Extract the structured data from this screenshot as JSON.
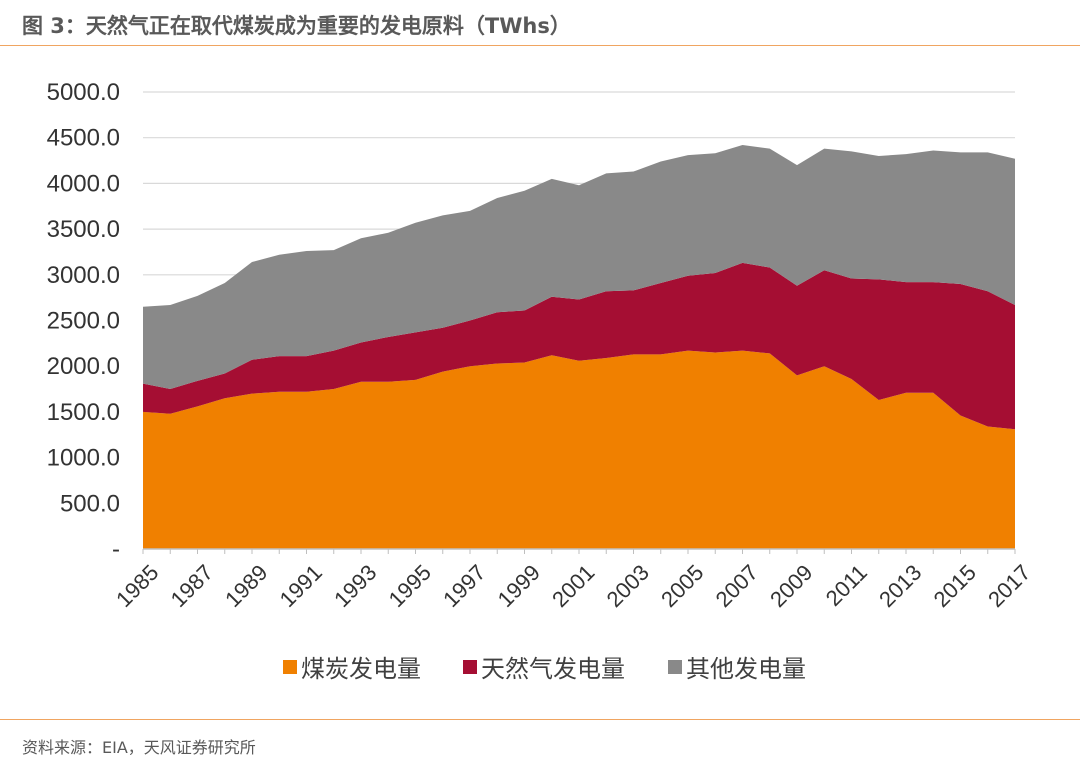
{
  "header": {
    "title": "图 3：天然气正在取代煤炭成为重要的发电原料（TWhs）"
  },
  "footer": {
    "source": "资料来源：EIA，天风证券研究所"
  },
  "colors": {
    "coal": "#f08000",
    "gas": "#a50e33",
    "other": "#898989",
    "grid": "#d9d9d9",
    "rule": "#f0a561"
  },
  "chart_data": {
    "type": "area",
    "stacked": true,
    "title": "",
    "xlabel": "",
    "ylabel": "",
    "ylim": [
      0,
      5000
    ],
    "yticks": [
      0,
      500,
      1000,
      1500,
      2000,
      2500,
      3000,
      3500,
      4000,
      4500,
      5000
    ],
    "ytick_labels": [
      "-",
      "500.0",
      "1000.0",
      "1500.0",
      "2000.0",
      "2500.0",
      "3000.0",
      "3500.0",
      "4000.0",
      "4500.0",
      "5000.0"
    ],
    "xtick_labels": [
      "1985",
      "1987",
      "1989",
      "1991",
      "1993",
      "1995",
      "1997",
      "1999",
      "2001",
      "2003",
      "2005",
      "2007",
      "2009",
      "2011",
      "2013",
      "2015",
      "2017"
    ],
    "grid": true,
    "legend_position": "bottom",
    "x": [
      1985,
      1986,
      1987,
      1988,
      1989,
      1990,
      1991,
      1992,
      1993,
      1994,
      1995,
      1996,
      1997,
      1998,
      1999,
      2000,
      2001,
      2002,
      2003,
      2004,
      2005,
      2006,
      2007,
      2008,
      2009,
      2010,
      2011,
      2012,
      2013,
      2014,
      2015,
      2016,
      2017
    ],
    "series": [
      {
        "name": "煤炭发电量",
        "color": "#f08000",
        "values": [
          1500,
          1480,
          1560,
          1650,
          1700,
          1720,
          1720,
          1750,
          1830,
          1830,
          1850,
          1940,
          2000,
          2030,
          2040,
          2120,
          2060,
          2090,
          2130,
          2130,
          2170,
          2150,
          2170,
          2140,
          1900,
          2000,
          1860,
          1630,
          1710,
          1710,
          1460,
          1340,
          1310
        ]
      },
      {
        "name": "天然气发电量",
        "color": "#a50e33",
        "values": [
          310,
          270,
          280,
          270,
          370,
          390,
          390,
          420,
          430,
          490,
          520,
          480,
          500,
          560,
          570,
          640,
          670,
          730,
          700,
          780,
          820,
          870,
          960,
          940,
          980,
          1050,
          1100,
          1320,
          1210,
          1210,
          1440,
          1480,
          1360
        ]
      },
      {
        "name": "其他发电量",
        "color": "#898989",
        "values": [
          840,
          920,
          930,
          990,
          1070,
          1110,
          1150,
          1100,
          1140,
          1140,
          1200,
          1230,
          1200,
          1250,
          1310,
          1290,
          1250,
          1290,
          1300,
          1330,
          1320,
          1310,
          1290,
          1300,
          1320,
          1330,
          1390,
          1350,
          1400,
          1440,
          1440,
          1520,
          1600
        ]
      }
    ]
  }
}
